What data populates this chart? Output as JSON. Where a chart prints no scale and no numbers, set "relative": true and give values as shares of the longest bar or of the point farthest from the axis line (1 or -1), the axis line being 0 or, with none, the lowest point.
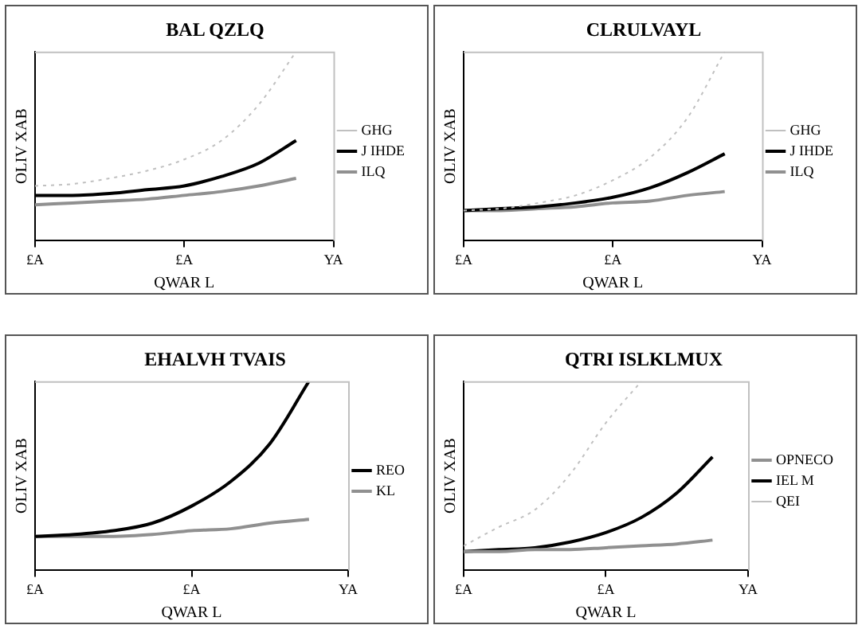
{
  "chart_data": [
    {
      "type": "line",
      "title": "BAL QZLQ",
      "xlabel": "QWAR L",
      "ylabel": "OLIV XAB",
      "relative": true,
      "categories": [
        "£A",
        null,
        null,
        null,
        "£A",
        null,
        null,
        null,
        "YA"
      ],
      "grid": false,
      "legend": "right",
      "marker": "none",
      "series": [
        {
          "name": "GHG",
          "color": "#c0c0c0",
          "line_style": "dotted",
          "values": [
            0.29,
            0.3,
            0.33,
            0.37,
            0.43,
            0.53,
            0.72,
            1,
            null
          ]
        },
        {
          "name": "J IHDE",
          "color": "#000000",
          "values": [
            0.24,
            0.24,
            0.25,
            0.27,
            0.29,
            0.34,
            0.41,
            0.53,
            null
          ]
        },
        {
          "name": "ILQ",
          "color": "#909090",
          "values": [
            0.19,
            0.2,
            0.21,
            0.22,
            0.24,
            0.26,
            0.29,
            0.33,
            null
          ]
        }
      ]
    },
    {
      "type": "line",
      "title": "CLRULVAYL",
      "xlabel": "QWAR L",
      "ylabel": "OLIV XAB",
      "relative": true,
      "categories": [
        "£A",
        null,
        null,
        null,
        "£A",
        null,
        null,
        null,
        "YA"
      ],
      "grid": false,
      "legend": "right",
      "marker": "none",
      "series": [
        {
          "name": "GHG",
          "color": "#c0c0c0",
          "line_style": "dotted",
          "values": [
            0.16,
            0.17,
            0.2,
            0.24,
            0.32,
            0.44,
            0.65,
            1,
            null
          ]
        },
        {
          "name": "J IHDE",
          "color": "#000000",
          "values": [
            0.16,
            0.17,
            0.18,
            0.2,
            0.23,
            0.28,
            0.36,
            0.46,
            null
          ]
        },
        {
          "name": "ILQ",
          "color": "#909090",
          "values": [
            0.16,
            0.16,
            0.17,
            0.18,
            0.2,
            0.21,
            0.24,
            0.26,
            null
          ]
        }
      ]
    },
    {
      "type": "line",
      "title": "EHALVH TVAIS",
      "xlabel": "QWAR L",
      "ylabel": "OLIV XAB",
      "relative": true,
      "categories": [
        "£A",
        null,
        null,
        null,
        "£A",
        null,
        null,
        null,
        "YA"
      ],
      "grid": false,
      "legend": "right",
      "marker": "none",
      "series": [
        {
          "name": "REO",
          "color": "#000000",
          "values": [
            0.18,
            0.19,
            0.21,
            0.25,
            0.34,
            0.47,
            0.67,
            1,
            null
          ]
        },
        {
          "name": "KL",
          "color": "#909090",
          "values": [
            0.18,
            0.18,
            0.18,
            0.19,
            0.21,
            0.22,
            0.25,
            0.27,
            null
          ]
        }
      ]
    },
    {
      "type": "line",
      "title": "QTRI ISLKLMUX",
      "xlabel": "QWAR L",
      "ylabel": "OLIV XAB",
      "relative": true,
      "categories": [
        "£A",
        null,
        null,
        null,
        "£A",
        null,
        null,
        null,
        "YA"
      ],
      "grid": false,
      "legend": "right",
      "marker": "none",
      "series": [
        {
          "name": "OPNECO",
          "color": "#909090",
          "values": [
            0.1,
            0.1,
            0.11,
            0.11,
            0.12,
            0.13,
            0.14,
            0.16,
            null
          ]
        },
        {
          "name": "IEL M",
          "color": "#000000",
          "values": [
            0.1,
            0.11,
            0.12,
            0.15,
            0.2,
            0.28,
            0.41,
            0.6,
            null
          ]
        },
        {
          "name": "QEI",
          "color": "#c0c0c0",
          "line_style": "dotted",
          "values": [
            0.13,
            0.23,
            0.32,
            0.51,
            0.78,
            1,
            null,
            null,
            null
          ]
        }
      ]
    }
  ]
}
